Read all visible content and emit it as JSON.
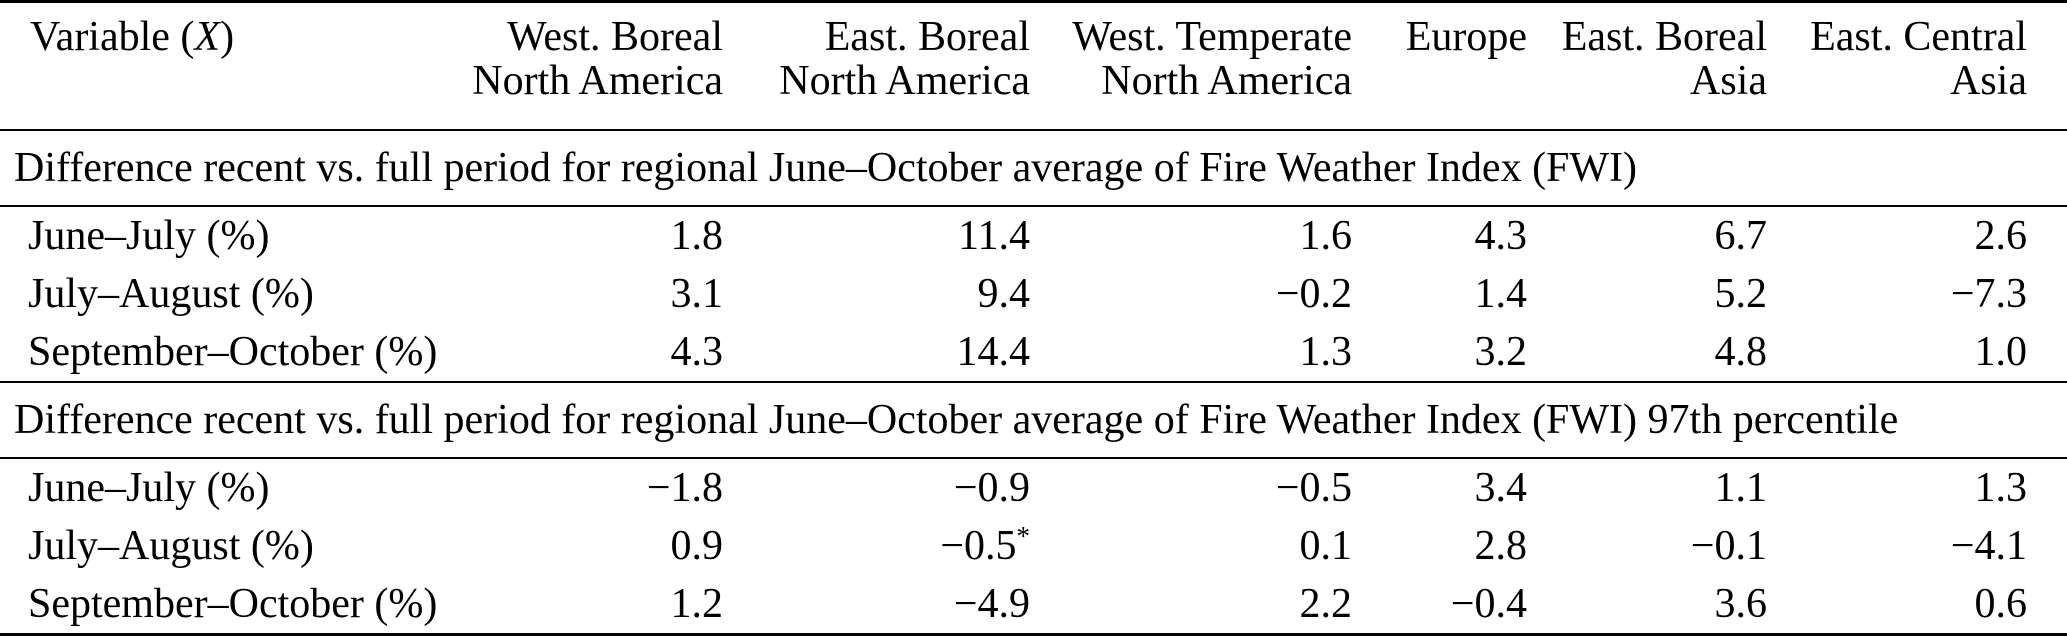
{
  "table": {
    "variable": {
      "prefix": "Variable (",
      "symbol": "X",
      "suffix": ")"
    },
    "columns": [
      {
        "line1": "West. Boreal",
        "line2": "North America"
      },
      {
        "line1": "East. Boreal",
        "line2": "North America"
      },
      {
        "line1": "West. Temperate",
        "line2": "North America"
      },
      {
        "line1": "Europe",
        "line2": ""
      },
      {
        "line1": "East. Boreal",
        "line2": "Asia"
      },
      {
        "line1": "East. Central",
        "line2": "Asia"
      }
    ],
    "sections": [
      {
        "title": "Difference recent vs. full period for regional June–October average of Fire Weather Index (FWI)",
        "rows": [
          {
            "label": "June–July (%)",
            "values": [
              "1.8",
              "11.4",
              "1.6",
              "4.3",
              "6.7",
              "2.6"
            ]
          },
          {
            "label": "July–August (%)",
            "values": [
              "3.1",
              "9.4",
              "−0.2",
              "1.4",
              "5.2",
              "−7.3"
            ]
          },
          {
            "label": "September–October (%)",
            "values": [
              "4.3",
              "14.4",
              "1.3",
              "3.2",
              "4.8",
              "1.0"
            ]
          }
        ]
      },
      {
        "title": "Difference recent vs. full period for regional June–October average of Fire Weather Index (FWI) 97th percentile",
        "rows": [
          {
            "label": "June–July (%)",
            "values": [
              "−1.8",
              "−0.9",
              "−0.5",
              "3.4",
              "1.1",
              "1.3"
            ]
          },
          {
            "label": "July–August (%)",
            "values": [
              "0.9",
              "−0.5*",
              "0.1",
              "2.8",
              "−0.1",
              "−4.1"
            ]
          },
          {
            "label": "September–October (%)",
            "values": [
              "1.2",
              "−4.9",
              "2.2",
              "−0.4",
              "3.6",
              "0.6"
            ]
          }
        ]
      }
    ],
    "text_color": "#000000",
    "rule_color": "#000000",
    "background_color": "#ffffff"
  }
}
